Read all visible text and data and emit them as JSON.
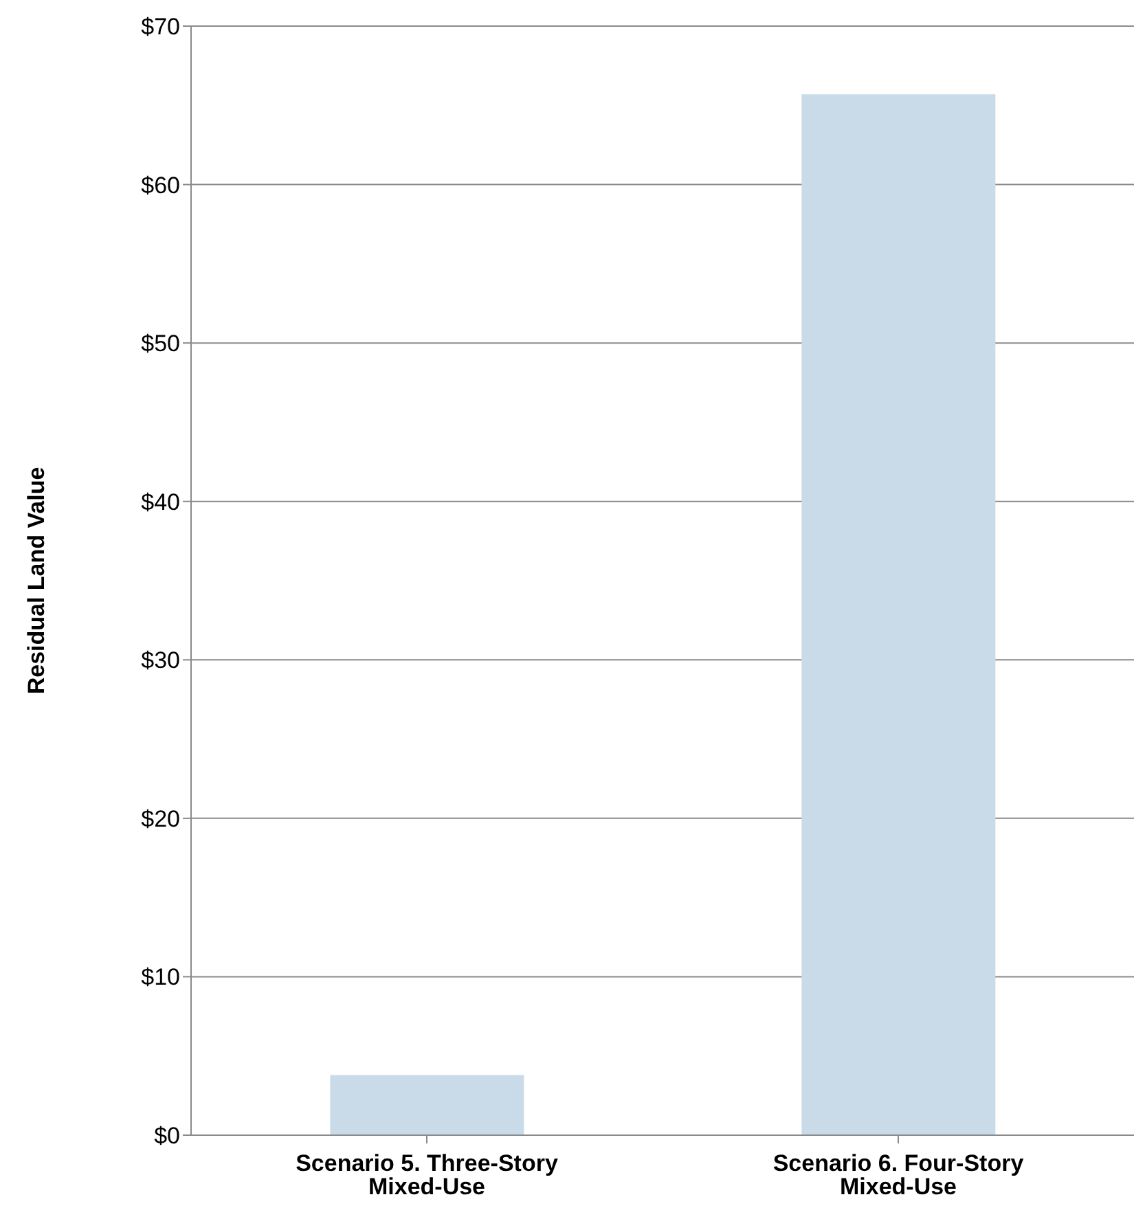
{
  "chart_data": {
    "type": "bar",
    "ylabel": "Residual Land Value",
    "categories": [
      "Scenario 5. Three-Story Mixed-Use",
      "Scenario 6. Four-Story Mixed-Use"
    ],
    "values": [
      3.8,
      65.7
    ],
    "color": "#c9dbe9",
    "ylim": [
      0,
      70
    ],
    "yticks": [
      {
        "value": 0,
        "label": "$0"
      },
      {
        "value": 10,
        "label": "$10"
      },
      {
        "value": 20,
        "label": "$20"
      },
      {
        "value": 30,
        "label": "$30"
      },
      {
        "value": 40,
        "label": "$40"
      },
      {
        "value": 50,
        "label": "$50"
      },
      {
        "value": 60,
        "label": "$60"
      },
      {
        "value": 70,
        "label": "$70"
      }
    ],
    "grid": "y",
    "legend": false
  }
}
